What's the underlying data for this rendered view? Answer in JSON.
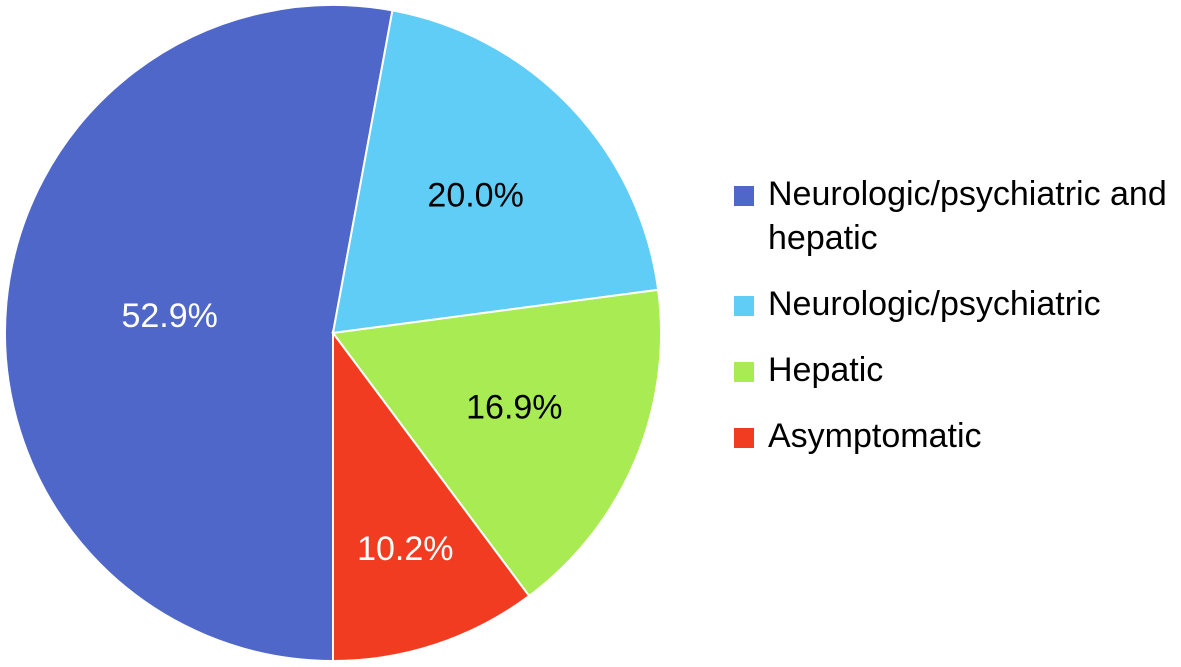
{
  "chart_data": {
    "type": "pie",
    "categories": [
      "Neurologic/psychiatric and hepatic",
      "Neurologic/psychiatric",
      "Hepatic",
      "Asymptomatic"
    ],
    "values": [
      52.9,
      20.0,
      16.9,
      10.2
    ],
    "value_labels": [
      "52.9%",
      "20.0%",
      "16.9%",
      "10.2%"
    ],
    "colors": [
      "#4f67c9",
      "#5fcdf5",
      "#a8eb52",
      "#f23c22"
    ],
    "label_colors": [
      "#ffffff",
      "#000000",
      "#000000",
      "#ffffff"
    ],
    "legend": "right"
  }
}
